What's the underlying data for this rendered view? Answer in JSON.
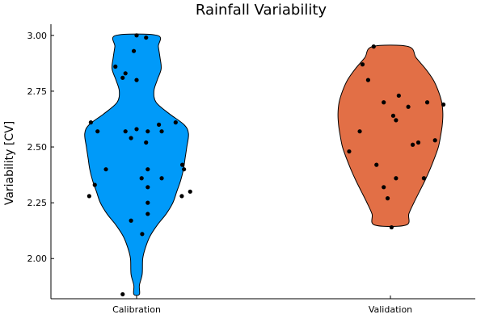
{
  "chart_data": {
    "type": "violin",
    "title": "Rainfall Variability",
    "xlabel": "",
    "ylabel": "Variability [CV]",
    "categories": [
      "Calibration",
      "Validation"
    ],
    "ylim": [
      1.82,
      3.05
    ],
    "yticks": [
      2.0,
      2.25,
      2.5,
      2.75,
      3.0
    ],
    "ytick_labels": [
      "2.00",
      "2.25",
      "2.50",
      "2.75",
      "3.00"
    ],
    "grid": false,
    "legend": "none",
    "series": [
      {
        "category": "Calibration",
        "color": "#009af9",
        "range": [
          1.84,
          3.0
        ],
        "width_profile": [
          [
            1.84,
            0.05
          ],
          [
            1.88,
            0.05
          ],
          [
            1.93,
            0.1
          ],
          [
            2.0,
            0.11
          ],
          [
            2.05,
            0.16
          ],
          [
            2.1,
            0.24
          ],
          [
            2.15,
            0.37
          ],
          [
            2.2,
            0.53
          ],
          [
            2.25,
            0.65
          ],
          [
            2.3,
            0.72
          ],
          [
            2.35,
            0.79
          ],
          [
            2.4,
            0.84
          ],
          [
            2.45,
            0.87
          ],
          [
            2.5,
            0.9
          ],
          [
            2.56,
            0.93
          ],
          [
            2.6,
            0.85
          ],
          [
            2.65,
            0.58
          ],
          [
            2.7,
            0.35
          ],
          [
            2.75,
            0.31
          ],
          [
            2.8,
            0.37
          ],
          [
            2.85,
            0.44
          ],
          [
            2.9,
            0.42
          ],
          [
            2.95,
            0.39
          ],
          [
            3.0,
            0.37
          ]
        ],
        "points": [
          [
            0.96,
            2.3
          ],
          [
            0.85,
            2.4
          ],
          [
            0.81,
            2.28
          ],
          [
            0.7,
            2.61
          ],
          [
            0.45,
            2.57
          ],
          [
            0.2,
            2.57
          ],
          [
            -0.1,
            2.54
          ],
          [
            -0.2,
            2.57
          ],
          [
            -0.25,
            2.81
          ],
          [
            -0.38,
            2.86
          ],
          [
            -0.05,
            2.93
          ],
          [
            0.0,
            3.0
          ],
          [
            0.17,
            2.99
          ],
          [
            -0.2,
            2.83
          ],
          [
            0.0,
            2.8
          ],
          [
            0.0,
            2.58
          ],
          [
            0.17,
            2.52
          ],
          [
            0.82,
            2.42
          ],
          [
            0.45,
            2.36
          ],
          [
            0.4,
            2.6
          ],
          [
            0.2,
            2.4
          ],
          [
            0.09,
            2.36
          ],
          [
            0.2,
            2.32
          ],
          [
            0.2,
            2.25
          ],
          [
            0.2,
            2.2
          ],
          [
            -0.1,
            2.17
          ],
          [
            0.1,
            2.11
          ],
          [
            -0.25,
            1.84
          ],
          [
            -0.82,
            2.61
          ],
          [
            -0.7,
            2.57
          ],
          [
            -0.55,
            2.4
          ],
          [
            -0.85,
            2.28
          ],
          [
            -0.75,
            2.33
          ]
        ]
      },
      {
        "category": "Validation",
        "color": "#e26f46",
        "range": [
          2.15,
          2.95
        ],
        "width_profile": [
          [
            2.15,
            0.28
          ],
          [
            2.2,
            0.33
          ],
          [
            2.25,
            0.42
          ],
          [
            2.3,
            0.52
          ],
          [
            2.35,
            0.62
          ],
          [
            2.4,
            0.71
          ],
          [
            2.45,
            0.79
          ],
          [
            2.5,
            0.86
          ],
          [
            2.55,
            0.9
          ],
          [
            2.6,
            0.93
          ],
          [
            2.65,
            0.94
          ],
          [
            2.7,
            0.92
          ],
          [
            2.75,
            0.86
          ],
          [
            2.8,
            0.77
          ],
          [
            2.85,
            0.63
          ],
          [
            2.9,
            0.46
          ],
          [
            2.95,
            0.32
          ]
        ],
        "points": [
          [
            -0.5,
            2.87
          ],
          [
            -0.4,
            2.8
          ],
          [
            -0.55,
            2.57
          ],
          [
            -0.74,
            2.48
          ],
          [
            -0.25,
            2.42
          ],
          [
            -0.12,
            2.32
          ],
          [
            -0.05,
            2.27
          ],
          [
            0.02,
            2.14
          ],
          [
            0.1,
            2.36
          ],
          [
            -0.3,
            2.95
          ],
          [
            -0.12,
            2.7
          ],
          [
            0.05,
            2.64
          ],
          [
            0.1,
            2.62
          ],
          [
            0.15,
            2.73
          ],
          [
            0.32,
            2.68
          ],
          [
            0.4,
            2.51
          ],
          [
            0.5,
            2.52
          ],
          [
            0.6,
            2.36
          ],
          [
            0.66,
            2.7
          ],
          [
            0.8,
            2.53
          ],
          [
            0.95,
            2.69
          ]
        ]
      }
    ]
  }
}
